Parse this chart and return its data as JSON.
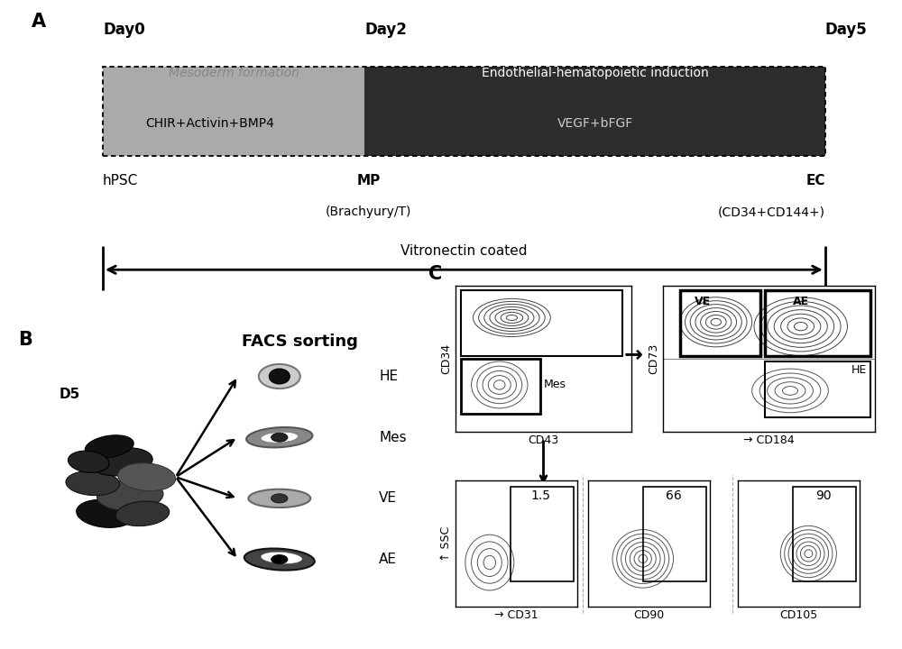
{
  "bg_color": "#ffffff",
  "panel_A": {
    "label": "A",
    "day_labels": [
      "Day0",
      "Day2",
      "Day5"
    ],
    "left_box_color": "#aaaaaa",
    "right_box_color": "#2d2d2d",
    "mesoderm_text": "Mesoderm formation",
    "mesoderm_text_color": "#888888",
    "endothelial_text": "Endothelial-hematopoietic induction",
    "chir_text": "CHIR+Activin+BMP4",
    "vegf_text": "VEGF+bFGF",
    "hpsc_text": "hPSC",
    "mp_text": "MP",
    "mp_sub": "(Brachyury/T)",
    "ec_text": "EC",
    "ec_sub": "(CD34+CD144+)",
    "vitronectin_text": "Vitronectin coated"
  },
  "panel_B": {
    "label": "B",
    "facs_text": "FACS sorting",
    "d5_text": "D5",
    "cell_types": [
      "HE",
      "Mes",
      "VE",
      "AE"
    ]
  },
  "panel_C": {
    "label": "C",
    "plot1_xlabel": "CD43",
    "plot1_ylabel": "CD34",
    "plot2_xlabel": "CD184",
    "plot2_ylabel": "CD73",
    "plot2_top_labels": [
      "VE",
      "AE"
    ],
    "plot2_he_label": "HE",
    "bottom_numbers": [
      "1.5",
      "66",
      "90"
    ],
    "bottom_xlabels": [
      "CD31",
      "CD90",
      "CD105"
    ],
    "ssc_label": "SSC",
    "mes_label": "Mes"
  }
}
